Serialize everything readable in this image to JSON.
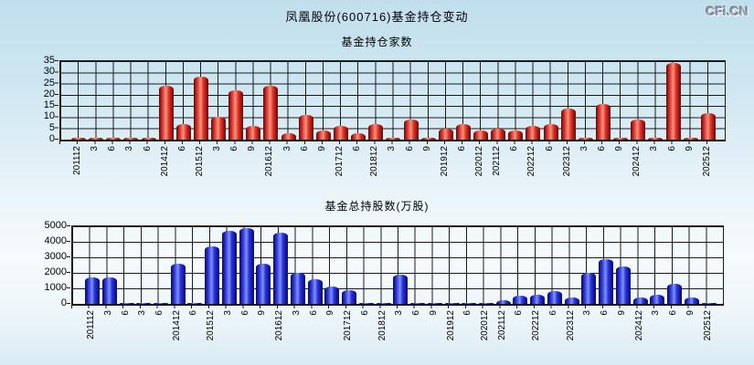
{
  "header": {
    "title": "凤凰股份(600716)基金持仓变动",
    "logo": "CFi.CN"
  },
  "colors": {
    "top_bar": "#d42020",
    "bottom_bar": "#3040d0",
    "grid": "#1a1a1a",
    "background": "#c8e4f0"
  },
  "chart_data": [
    {
      "type": "bar",
      "title": "基金持仓家数",
      "series_name": "基金持仓家数",
      "bar_color_name": "red",
      "grid": true,
      "ylim": [
        0,
        35
      ],
      "yticks": [
        0,
        5,
        10,
        15,
        20,
        25,
        30,
        35
      ],
      "categories": [
        "201112",
        "3",
        "6",
        "3",
        "6",
        "201412",
        "6",
        "201512",
        "3",
        "6",
        "9",
        "201612",
        "3",
        "6",
        "9",
        "201712",
        "6",
        "201812",
        "3",
        "6",
        "9",
        "201912",
        "6",
        "202012",
        "202112",
        "6",
        "202212",
        "6",
        "202312",
        "3",
        "6",
        "9",
        "202412",
        "3",
        "6",
        "9",
        "202512"
      ],
      "values": [
        1,
        1,
        1,
        1,
        1,
        24,
        7,
        28,
        10,
        22,
        6,
        24,
        3,
        11,
        4,
        6,
        3,
        7,
        1,
        9,
        1,
        5,
        7,
        4,
        5,
        4,
        6,
        7,
        14,
        1,
        16,
        1,
        9,
        1,
        34,
        1,
        12
      ]
    },
    {
      "type": "bar",
      "title": "基金总持股数(万股)",
      "series_name": "基金总持股数(万股)",
      "bar_color_name": "blue",
      "grid": true,
      "ylim": [
        0,
        5000
      ],
      "yticks": [
        0,
        1000,
        2000,
        3000,
        4000,
        5000
      ],
      "categories": [
        "201112",
        "3",
        "6",
        "3",
        "6",
        "201412",
        "6",
        "201512",
        "3",
        "6",
        "9",
        "201612",
        "3",
        "6",
        "9",
        "201712",
        "6",
        "201812",
        "3",
        "6",
        "9",
        "201912",
        "6",
        "202012",
        "202112",
        "6",
        "202212",
        "6",
        "202312",
        "3",
        "6",
        "9",
        "202412",
        "3",
        "6",
        "9",
        "202512"
      ],
      "values": [
        1700,
        1700,
        30,
        30,
        30,
        2600,
        30,
        3700,
        4700,
        4900,
        2600,
        4600,
        2000,
        1600,
        1100,
        900,
        30,
        30,
        1900,
        50,
        20,
        80,
        50,
        30,
        250,
        500,
        600,
        800,
        400,
        2000,
        2900,
        2400,
        400,
        600,
        1300,
        400,
        80
      ]
    }
  ]
}
